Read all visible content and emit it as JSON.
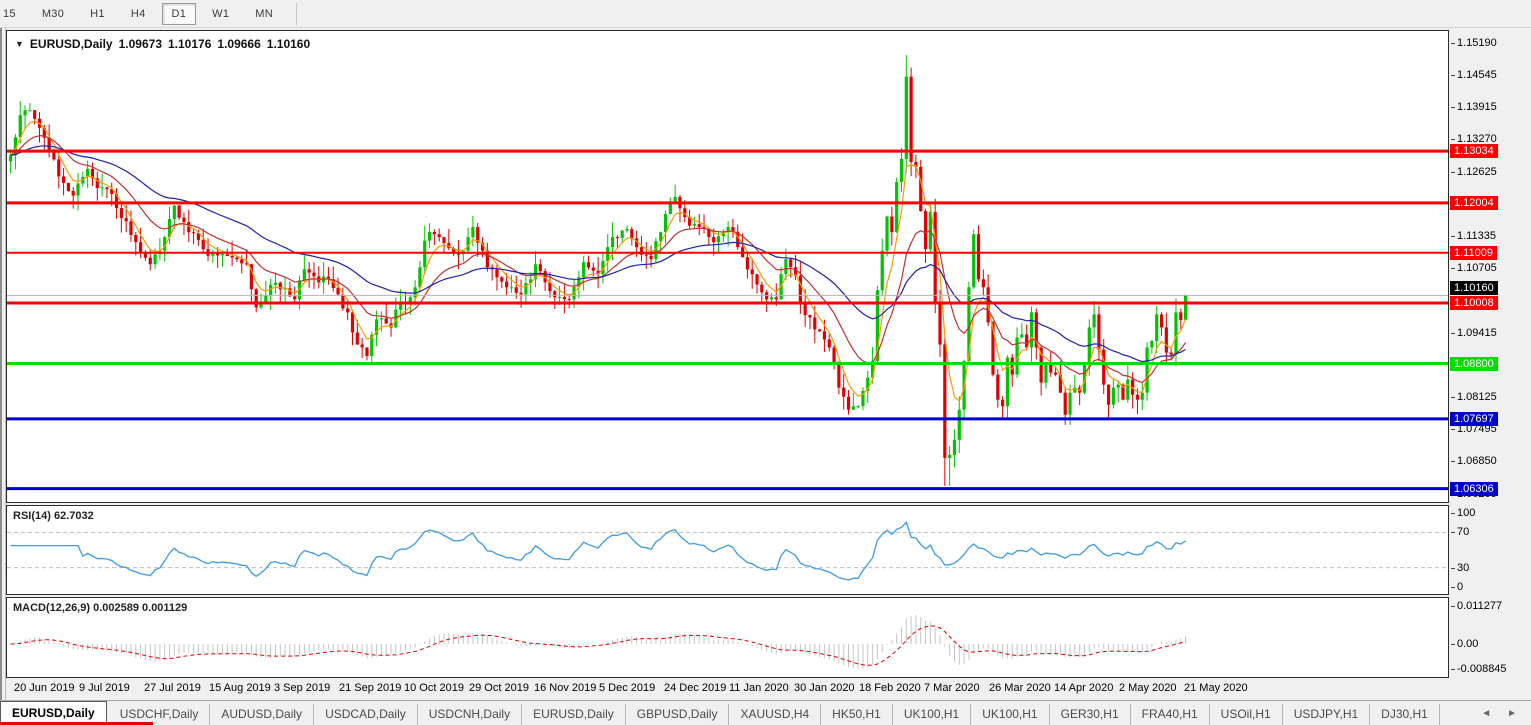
{
  "toolbar": {
    "timeframes": [
      {
        "label": "15",
        "active": false
      },
      {
        "label": "M30",
        "active": false
      },
      {
        "label": "H1",
        "active": false
      },
      {
        "label": "H4",
        "active": false
      },
      {
        "label": "D1",
        "active": true
      },
      {
        "label": "W1",
        "active": false
      },
      {
        "label": "MN",
        "active": false
      }
    ]
  },
  "chart_header": {
    "dropdown_icon": "▼",
    "symbol": "EURUSD,Daily",
    "open": "1.09673",
    "high": "1.10176",
    "low": "1.09666",
    "close": "1.10160"
  },
  "price_axis": {
    "ticks": [
      {
        "label": "1.15190",
        "value": 1.1519
      },
      {
        "label": "1.14545",
        "value": 1.14545
      },
      {
        "label": "1.13915",
        "value": 1.13915
      },
      {
        "label": "1.13270",
        "value": 1.1327
      },
      {
        "label": "1.12625",
        "value": 1.12625
      },
      {
        "label": "1.11335",
        "value": 1.11335
      },
      {
        "label": "1.10705",
        "value": 1.10705
      },
      {
        "label": "1.09415",
        "value": 1.09415
      },
      {
        "label": "1.08125",
        "value": 1.08125
      },
      {
        "label": "1.07495",
        "value": 1.07495
      },
      {
        "label": "1.06850",
        "value": 1.0685
      },
      {
        "label": "1.06205",
        "value": 1.06205
      }
    ]
  },
  "levels": [
    {
      "label": "1.13034",
      "price": 1.13034,
      "color": "#ff0000",
      "width": 3
    },
    {
      "label": "1.12004",
      "price": 1.12004,
      "color": "#ff0000",
      "width": 3
    },
    {
      "label": "1.11009",
      "price": 1.11009,
      "color": "#ff0000",
      "width": 2
    },
    {
      "label": "1.10008",
      "price": 1.10008,
      "color": "#ff0000",
      "width": 3
    },
    {
      "label": "1.08800",
      "price": 1.088,
      "color": "#00e000",
      "width": 3
    },
    {
      "label": "1.07697",
      "price": 1.07697,
      "color": "#0000cd",
      "width": 3
    },
    {
      "label": "1.06306",
      "price": 1.06306,
      "color": "#0000cd",
      "width": 3
    }
  ],
  "current_price": {
    "label": "1.10160",
    "value": 1.1016,
    "badge_color": "#000000",
    "line_color": "#b4b4b4"
  },
  "rsi_panel": {
    "label": "RSI(14) 62.7032",
    "line_color": "#3d9be9",
    "guide_levels": [
      70,
      30
    ],
    "scale_labels": [
      {
        "label": "100",
        "value": 100
      },
      {
        "label": "70",
        "value": 70
      },
      {
        "label": "30",
        "value": 30
      },
      {
        "label": "0",
        "value": 0
      }
    ]
  },
  "macd_panel": {
    "label": "MACD(12,26,9) 0.002589 0.001129",
    "histogram_color": "#c6c6c6",
    "signal_color": "#e00000",
    "scale_labels": [
      {
        "label": "0.011277",
        "value": 0.011277
      },
      {
        "label": "0.00",
        "value": 0
      },
      {
        "label": "-0.008845",
        "value": -0.008845
      }
    ]
  },
  "date_axis": {
    "labels": [
      "20 Jun 2019",
      "9 Jul 2019",
      "27 Jul 2019",
      "15 Aug 2019",
      "3 Sep 2019",
      "21 Sep 2019",
      "10 Oct 2019",
      "29 Oct 2019",
      "16 Nov 2019",
      "5 Dec 2019",
      "24 Dec 2019",
      "11 Jan 2020",
      "30 Jan 2020",
      "18 Feb 2020",
      "7 Mar 2020",
      "26 Mar 2020",
      "14 Apr 2020",
      "2 May 2020",
      "21 May 2020"
    ]
  },
  "tab_bar": {
    "tabs": [
      {
        "label": "EURUSD,Daily",
        "active": true
      },
      {
        "label": "USDCHF,Daily",
        "active": false
      },
      {
        "label": "AUDUSD,Daily",
        "active": false
      },
      {
        "label": "USDCAD,Daily",
        "active": false
      },
      {
        "label": "USDCNH,Daily",
        "active": false
      },
      {
        "label": "EURUSD,Daily",
        "active": false
      },
      {
        "label": "GBPUSD,Daily",
        "active": false
      },
      {
        "label": "XAUUSD,H4",
        "active": false
      },
      {
        "label": "HK50,H1",
        "active": false
      },
      {
        "label": "UK100,H1",
        "active": false
      },
      {
        "label": "UK100,H1",
        "active": false
      },
      {
        "label": "GER30,H1",
        "active": false
      },
      {
        "label": "FRA40,H1",
        "active": false
      },
      {
        "label": "USOil,H1",
        "active": false
      },
      {
        "label": "USDJPY,H1",
        "active": false
      },
      {
        "label": "DJ30,H1",
        "active": false
      }
    ],
    "scroll_left_icon": "◄",
    "scroll_right_icon": "►"
  },
  "chart_data": {
    "type": "candlestick",
    "symbol": "EURUSD",
    "timeframe": "Daily",
    "n_candles": 245,
    "price_range": {
      "top": 1.1543,
      "bottom": 1.0604
    },
    "bull_color": "#00c400",
    "bear_color": "#e00000",
    "close_anchors": [
      [
        0,
        1.1295
      ],
      [
        2,
        1.1375
      ],
      [
        3,
        1.1385
      ],
      [
        5,
        1.1368
      ],
      [
        7,
        1.133
      ],
      [
        9,
        1.1287
      ],
      [
        11,
        1.124
      ],
      [
        13,
        1.1215
      ],
      [
        15,
        1.1252
      ],
      [
        16,
        1.1268
      ],
      [
        18,
        1.123
      ],
      [
        21,
        1.1218
      ],
      [
        23,
        1.117
      ],
      [
        26,
        1.1122
      ],
      [
        29,
        1.1078
      ],
      [
        31,
        1.1105
      ],
      [
        33,
        1.1168
      ],
      [
        34,
        1.1195
      ],
      [
        36,
        1.1162
      ],
      [
        38,
        1.114
      ],
      [
        40,
        1.1108
      ],
      [
        41,
        1.1095
      ],
      [
        44,
        1.1098
      ],
      [
        47,
        1.1088
      ],
      [
        49,
        1.1078
      ],
      [
        51,
        1.0992
      ],
      [
        52,
        1.1002
      ],
      [
        54,
        1.1037
      ],
      [
        56,
        1.1028
      ],
      [
        59,
        1.1008
      ],
      [
        61,
        1.1068
      ],
      [
        64,
        1.1042
      ],
      [
        66,
        1.1048
      ],
      [
        68,
        1.1018
      ],
      [
        70,
        1.0982
      ],
      [
        71,
        1.0942
      ],
      [
        73,
        1.0912
      ],
      [
        74,
        1.0895
      ],
      [
        76,
        1.0968
      ],
      [
        78,
        1.096
      ],
      [
        79,
        1.0952
      ],
      [
        81,
        1.1002
      ],
      [
        83,
        1.1012
      ],
      [
        84,
        1.1032
      ],
      [
        85,
        1.1072
      ],
      [
        86,
        1.1125
      ],
      [
        88,
        1.1138
      ],
      [
        89,
        1.1132
      ],
      [
        91,
        1.111
      ],
      [
        93,
        1.1098
      ],
      [
        95,
        1.1132
      ],
      [
        96,
        1.1152
      ],
      [
        98,
        1.1105
      ],
      [
        99,
        1.1072
      ],
      [
        101,
        1.1052
      ],
      [
        103,
        1.1032
      ],
      [
        106,
        1.1018
      ],
      [
        108,
        1.1048
      ],
      [
        109,
        1.1078
      ],
      [
        111,
        1.1042
      ],
      [
        113,
        1.1012
      ],
      [
        116,
        1.1008
      ],
      [
        118,
        1.1052
      ],
      [
        119,
        1.1082
      ],
      [
        121,
        1.1065
      ],
      [
        122,
        1.1058
      ],
      [
        124,
        1.1112
      ],
      [
        125,
        1.1132
      ],
      [
        127,
        1.1145
      ],
      [
        128,
        1.1148
      ],
      [
        130,
        1.1112
      ],
      [
        132,
        1.1095
      ],
      [
        133,
        1.1088
      ],
      [
        135,
        1.1142
      ],
      [
        136,
        1.1178
      ],
      [
        138,
        1.1212
      ],
      [
        140,
        1.1172
      ],
      [
        142,
        1.1158
      ],
      [
        143,
        1.1152
      ],
      [
        145,
        1.1132
      ],
      [
        146,
        1.1122
      ],
      [
        148,
        1.1142
      ],
      [
        149,
        1.1152
      ],
      [
        151,
        1.1112
      ],
      [
        152,
        1.1092
      ],
      [
        154,
        1.1058
      ],
      [
        156,
        1.1022
      ],
      [
        158,
        1.1012
      ],
      [
        159,
        1.1008
      ],
      [
        161,
        1.1088
      ],
      [
        162,
        1.1072
      ],
      [
        163,
        1.1055
      ],
      [
        164,
        1.1
      ],
      [
        166,
        1.0972
      ],
      [
        167,
        1.0948
      ],
      [
        169,
        1.0928
      ],
      [
        170,
        1.0912
      ],
      [
        172,
        1.0832
      ],
      [
        174,
        1.0788
      ],
      [
        176,
        1.0795
      ],
      [
        178,
        1.0852
      ],
      [
        179,
        1.0885
      ],
      [
        180,
        1.1026
      ],
      [
        181,
        1.1105
      ],
      [
        182,
        1.1173
      ],
      [
        183,
        1.1142
      ],
      [
        184,
        1.1242
      ],
      [
        185,
        1.1288
      ],
      [
        186,
        1.1452
      ],
      [
        187,
        1.1282
      ],
      [
        188,
        1.1272
      ],
      [
        189,
        1.1184
      ],
      [
        190,
        1.1108
      ],
      [
        191,
        1.1182
      ],
      [
        192,
        1.0998
      ],
      [
        193,
        1.0918
      ],
      [
        194,
        1.0692
      ],
      [
        195,
        1.0698
      ],
      [
        196,
        1.0728
      ],
      [
        197,
        1.0788
      ],
      [
        198,
        1.0885
      ],
      [
        199,
        1.1032
      ],
      [
        200,
        1.1138
      ],
      [
        201,
        1.1048
      ],
      [
        202,
        1.1032
      ],
      [
        203,
        1.0962
      ],
      [
        204,
        1.0858
      ],
      [
        205,
        1.0808
      ],
      [
        206,
        1.0795
      ],
      [
        207,
        1.0892
      ],
      [
        208,
        1.0858
      ],
      [
        209,
        1.0932
      ],
      [
        210,
        1.0938
      ],
      [
        211,
        1.0912
      ],
      [
        212,
        1.0982
      ],
      [
        213,
        1.0912
      ],
      [
        214,
        1.0842
      ],
      [
        215,
        1.0878
      ],
      [
        216,
        1.0862
      ],
      [
        217,
        1.0858
      ],
      [
        218,
        1.0822
      ],
      [
        219,
        1.0778
      ],
      [
        220,
        1.0822
      ],
      [
        221,
        1.0832
      ],
      [
        222,
        1.0822
      ],
      [
        223,
        1.0878
      ],
      [
        224,
        1.0952
      ],
      [
        225,
        1.0978
      ],
      [
        226,
        1.0908
      ],
      [
        227,
        1.0838
      ],
      [
        228,
        1.0798
      ],
      [
        229,
        1.0832
      ],
      [
        230,
        1.0838
      ],
      [
        231,
        1.0808
      ],
      [
        232,
        1.0848
      ],
      [
        233,
        1.0818
      ],
      [
        234,
        1.0808
      ],
      [
        235,
        1.0822
      ],
      [
        236,
        1.0912
      ],
      [
        237,
        1.0925
      ],
      [
        238,
        1.0978
      ],
      [
        239,
        1.0952
      ],
      [
        240,
        1.0902
      ],
      [
        241,
        1.0898
      ],
      [
        242,
        1.0982
      ],
      [
        243,
        1.0967
      ],
      [
        244,
        1.1016
      ]
    ],
    "wick_overrides": {
      "174": {
        "low": 1.0778
      },
      "186": {
        "high": 1.1495
      },
      "194": {
        "low": 1.0636
      },
      "195": {
        "low": 1.0636
      },
      "200": {
        "high": 1.1147
      },
      "244": {
        "high": 1.10176,
        "low": 1.09666
      }
    },
    "moving_averages": [
      {
        "name": "fast",
        "period": 5,
        "color": "#ff9900"
      },
      {
        "name": "medium",
        "period": 15,
        "color": "#c33030"
      },
      {
        "name": "slow",
        "period": 40,
        "color": "#1f1fae"
      }
    ],
    "indicators": {
      "rsi": {
        "period": 14,
        "current": 62.7032
      },
      "macd": {
        "fast": 12,
        "slow": 26,
        "signal": 9,
        "current_macd": 0.002589,
        "current_signal": 0.001129
      }
    }
  }
}
